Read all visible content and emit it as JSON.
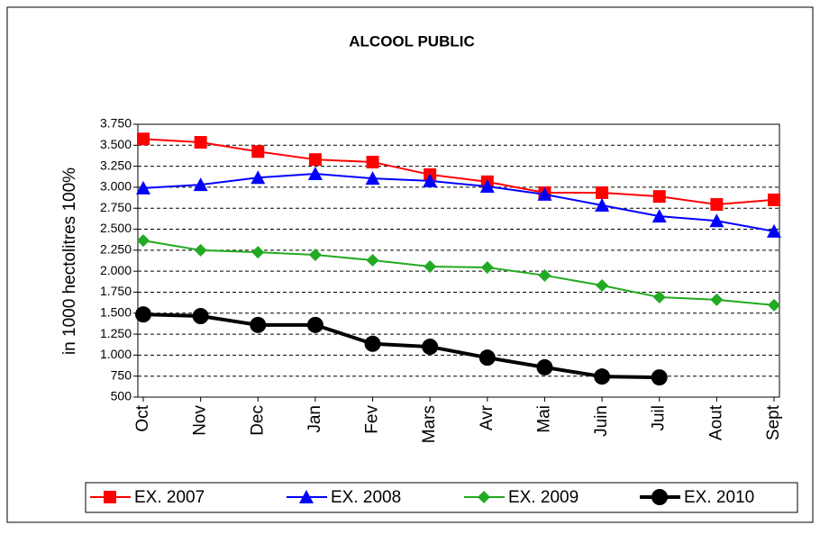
{
  "chart_data": {
    "type": "line",
    "title": "ALCOOL PUBLIC",
    "y_label": "in 1000 hectolitres 100%",
    "categories": [
      "Oct",
      "Nov",
      "Dec",
      "Jan",
      "Fev",
      "Mars",
      "Avr",
      "Mai",
      "Juin",
      "Juil",
      "Aout",
      "Sept"
    ],
    "ylim": [
      500,
      3750
    ],
    "yticks": [
      {
        "value": 500,
        "label": "500"
      },
      {
        "value": 750,
        "label": "750"
      },
      {
        "value": 1000,
        "label": "1.000"
      },
      {
        "value": 1250,
        "label": "1.250"
      },
      {
        "value": 1500,
        "label": "1.500"
      },
      {
        "value": 1750,
        "label": "1.750"
      },
      {
        "value": 2000,
        "label": "2.000"
      },
      {
        "value": 2250,
        "label": "2.250"
      },
      {
        "value": 2500,
        "label": "2.500"
      },
      {
        "value": 2750,
        "label": "2.750"
      },
      {
        "value": 3000,
        "label": "3.000"
      },
      {
        "value": 3250,
        "label": "3.250"
      },
      {
        "value": 3500,
        "label": "3.500"
      },
      {
        "value": 3750,
        "label": "3.750"
      }
    ],
    "grid": true,
    "legend": "bottom",
    "series": [
      {
        "name": "EX.  2007",
        "color": "#ff0000",
        "marker": "square",
        "linewidth": 2,
        "values": [
          3575,
          3535,
          3425,
          3330,
          3300,
          3150,
          3065,
          2935,
          2935,
          2890,
          2795,
          2850
        ]
      },
      {
        "name": "EX.  2008",
        "color": "#0000ff",
        "marker": "triangle",
        "linewidth": 2,
        "values": [
          2990,
          3030,
          3115,
          3160,
          3105,
          3075,
          3010,
          2915,
          2785,
          2655,
          2600,
          2475
        ]
      },
      {
        "name": "EX.  2009",
        "color": "#22aa22",
        "marker": "diamond",
        "linewidth": 2,
        "values": [
          2365,
          2250,
          2225,
          2195,
          2130,
          2055,
          2045,
          1950,
          1830,
          1690,
          1660,
          1595
        ]
      },
      {
        "name": "EX.  2010",
        "color": "#000000",
        "marker": "circle",
        "linewidth": 4,
        "values": [
          1485,
          1465,
          1360,
          1360,
          1135,
          1100,
          970,
          855,
          745,
          735,
          null,
          null
        ]
      }
    ]
  }
}
